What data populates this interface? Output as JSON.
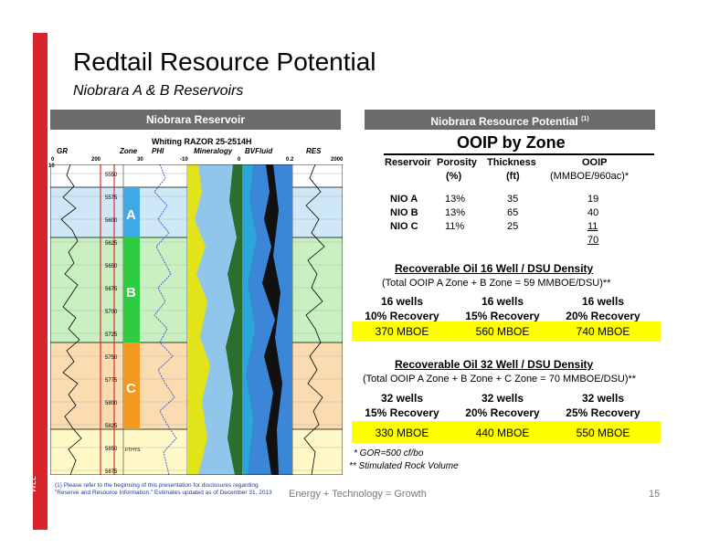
{
  "exchange": "NYSE: WLL",
  "title": "Redtail Resource Potential",
  "subtitle": "Niobrara A & B Reservoirs",
  "left_header": "Niobrara  Reservoir",
  "right_header": "Niobrara  Resource Potential",
  "right_header_sup": "(1)",
  "log": {
    "well_name": "Whiting RAZOR 25-2514H",
    "tracks": [
      "GR",
      "Zone",
      "PHI",
      "Mineralogy",
      "BVFluid",
      "RES"
    ],
    "scales": [
      "0",
      "200",
      "30",
      "-10",
      "0",
      "0.2",
      "2000",
      "10"
    ],
    "depths": [
      "5550",
      "5575",
      "5600",
      "5625",
      "5650",
      "5675",
      "5700",
      "5725",
      "5750",
      "5775",
      "5800",
      "5825",
      "5850",
      "5875"
    ],
    "zones": [
      "A",
      "B",
      "C"
    ],
    "marker": "FTHYS",
    "colors": {
      "zone_a": "#3fa9e6",
      "zone_b": "#2ecc40",
      "zone_c": "#f39a1e",
      "band_a": "#cfe8f7",
      "band_b": "#c9f0c0",
      "band_c": "#fbdcb0",
      "band_d": "#fff9c8"
    }
  },
  "ooip": {
    "title": "OOIP by Zone",
    "headers": {
      "reservoir": "Reservoir",
      "porosity": "Porosity",
      "porosity_unit": "(%)",
      "thickness": "Thickness",
      "thickness_unit": "(ft)",
      "ooip": "OOIP",
      "ooip_unit": "(MMBOE/960ac)*"
    },
    "rows": [
      {
        "zone": "NIO A",
        "porosity": "13%",
        "thickness": "35",
        "ooip": "19"
      },
      {
        "zone": "NIO B",
        "porosity": "13%",
        "thickness": "65",
        "ooip": "40"
      },
      {
        "zone": "NIO C",
        "porosity": "11%",
        "thickness": "25",
        "ooip": "11"
      }
    ],
    "total": "70"
  },
  "recov16": {
    "title": "Recoverable Oil 16 Well / DSU Density",
    "subtitle": "(Total OOIP A Zone + B Zone = 59 MMBOE/DSU)**",
    "cols": [
      {
        "wells": "16 wells",
        "recovery": "10% Recovery",
        "value": "370 MBOE"
      },
      {
        "wells": "16 wells",
        "recovery": "15% Recovery",
        "value": "560 MBOE"
      },
      {
        "wells": "16 wells",
        "recovery": "20% Recovery",
        "value": "740 MBOE"
      }
    ]
  },
  "recov32": {
    "title": "Recoverable Oil 32 Well / DSU Density",
    "subtitle": "(Total OOIP A Zone + B Zone + C Zone = 70 MMBOE/DSU)**",
    "cols": [
      {
        "wells": "32 wells",
        "recovery": "15% Recovery",
        "value": "330 MBOE"
      },
      {
        "wells": "32 wells",
        "recovery": "20% Recovery",
        "value": "440 MBOE"
      },
      {
        "wells": "32 wells",
        "recovery": "25% Recovery",
        "value": "550 MBOE"
      }
    ]
  },
  "notes": [
    "*  GOR=500 cf/bo",
    "**  Stimulated Rock Volume"
  ],
  "footnote": "(1) Please refer to the beginning of this presentation for disclosures regarding \"Reserve and Resource Information.\" Estimates updated as of December 31, 2013",
  "tagline": "Energy + Technology = Growth",
  "page": "15"
}
